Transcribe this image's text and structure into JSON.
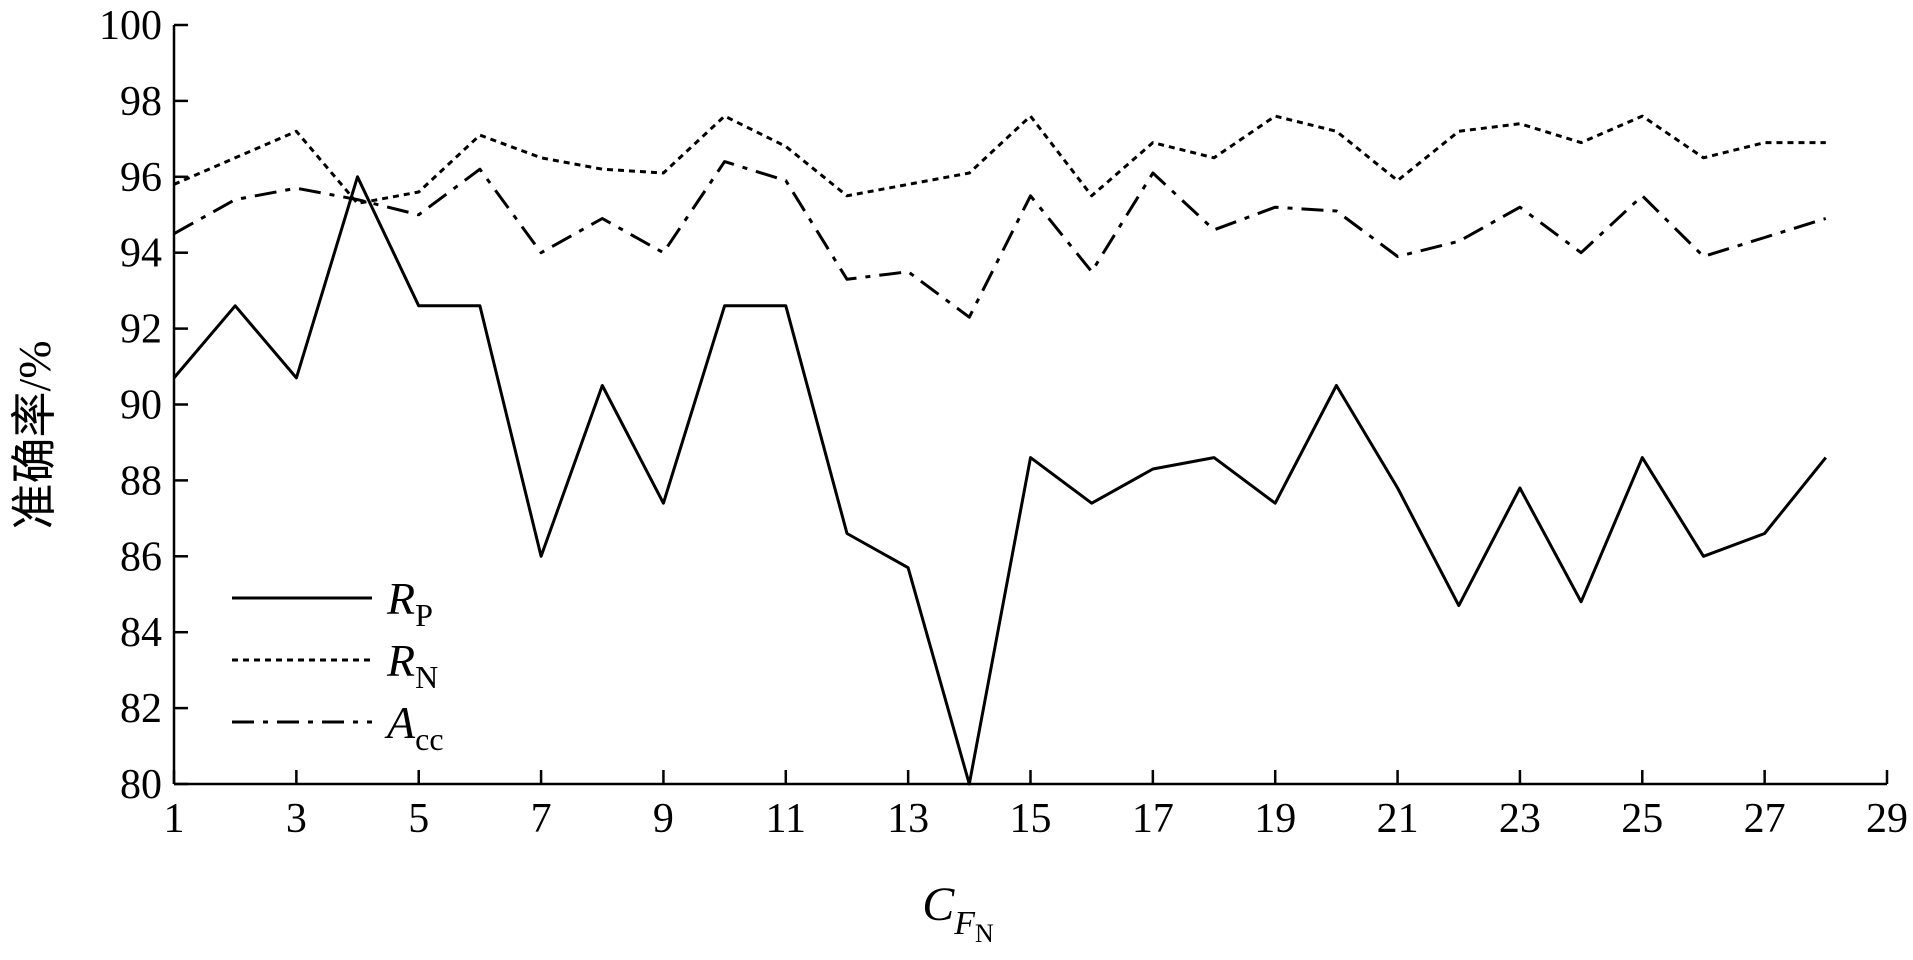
{
  "chart_data": {
    "type": "line",
    "xlabel": {
      "main": "C",
      "sub": "F",
      "subsub": "N"
    },
    "ylabel": "准确率/%",
    "xlim": [
      1,
      29
    ],
    "ylim": [
      80,
      100
    ],
    "xticks": [
      1,
      3,
      5,
      7,
      9,
      11,
      13,
      15,
      17,
      19,
      21,
      23,
      25,
      27,
      29
    ],
    "yticks": [
      80,
      82,
      84,
      86,
      88,
      90,
      92,
      94,
      96,
      98,
      100
    ],
    "legend_position": "bottom-left",
    "grid": false,
    "x": [
      1,
      2,
      3,
      4,
      5,
      6,
      7,
      8,
      9,
      10,
      11,
      12,
      13,
      14,
      15,
      16,
      17,
      18,
      19,
      20,
      21,
      22,
      23,
      24,
      25,
      26,
      27,
      28
    ],
    "series": [
      {
        "name": "R",
        "name_sub": "P",
        "style": "solid",
        "values": [
          90.7,
          92.6,
          90.7,
          96.0,
          92.6,
          92.6,
          86.0,
          90.5,
          87.4,
          92.6,
          92.6,
          86.6,
          85.7,
          80.0,
          88.6,
          87.4,
          88.3,
          88.6,
          87.4,
          90.5,
          87.8,
          84.7,
          87.8,
          84.8,
          88.6,
          86.0,
          86.6,
          88.6
        ]
      },
      {
        "name": "R",
        "name_sub": "N",
        "style": "dotted",
        "values": [
          95.8,
          96.5,
          97.2,
          95.3,
          95.6,
          97.1,
          96.5,
          96.2,
          96.1,
          97.6,
          96.8,
          95.5,
          95.8,
          96.1,
          97.6,
          95.5,
          96.9,
          96.5,
          97.6,
          97.2,
          95.9,
          97.2,
          97.4,
          96.9,
          97.6,
          96.5,
          96.9,
          96.9
        ]
      },
      {
        "name": "A",
        "name_sub": "cc",
        "style": "dashdot",
        "values": [
          94.5,
          95.4,
          95.7,
          95.4,
          95.0,
          96.2,
          94.0,
          94.9,
          94.0,
          96.4,
          95.9,
          93.3,
          93.5,
          92.3,
          95.5,
          93.5,
          96.1,
          94.6,
          95.2,
          95.1,
          93.9,
          94.3,
          95.2,
          94.0,
          95.5,
          93.9,
          94.4,
          94.9
        ]
      }
    ]
  }
}
